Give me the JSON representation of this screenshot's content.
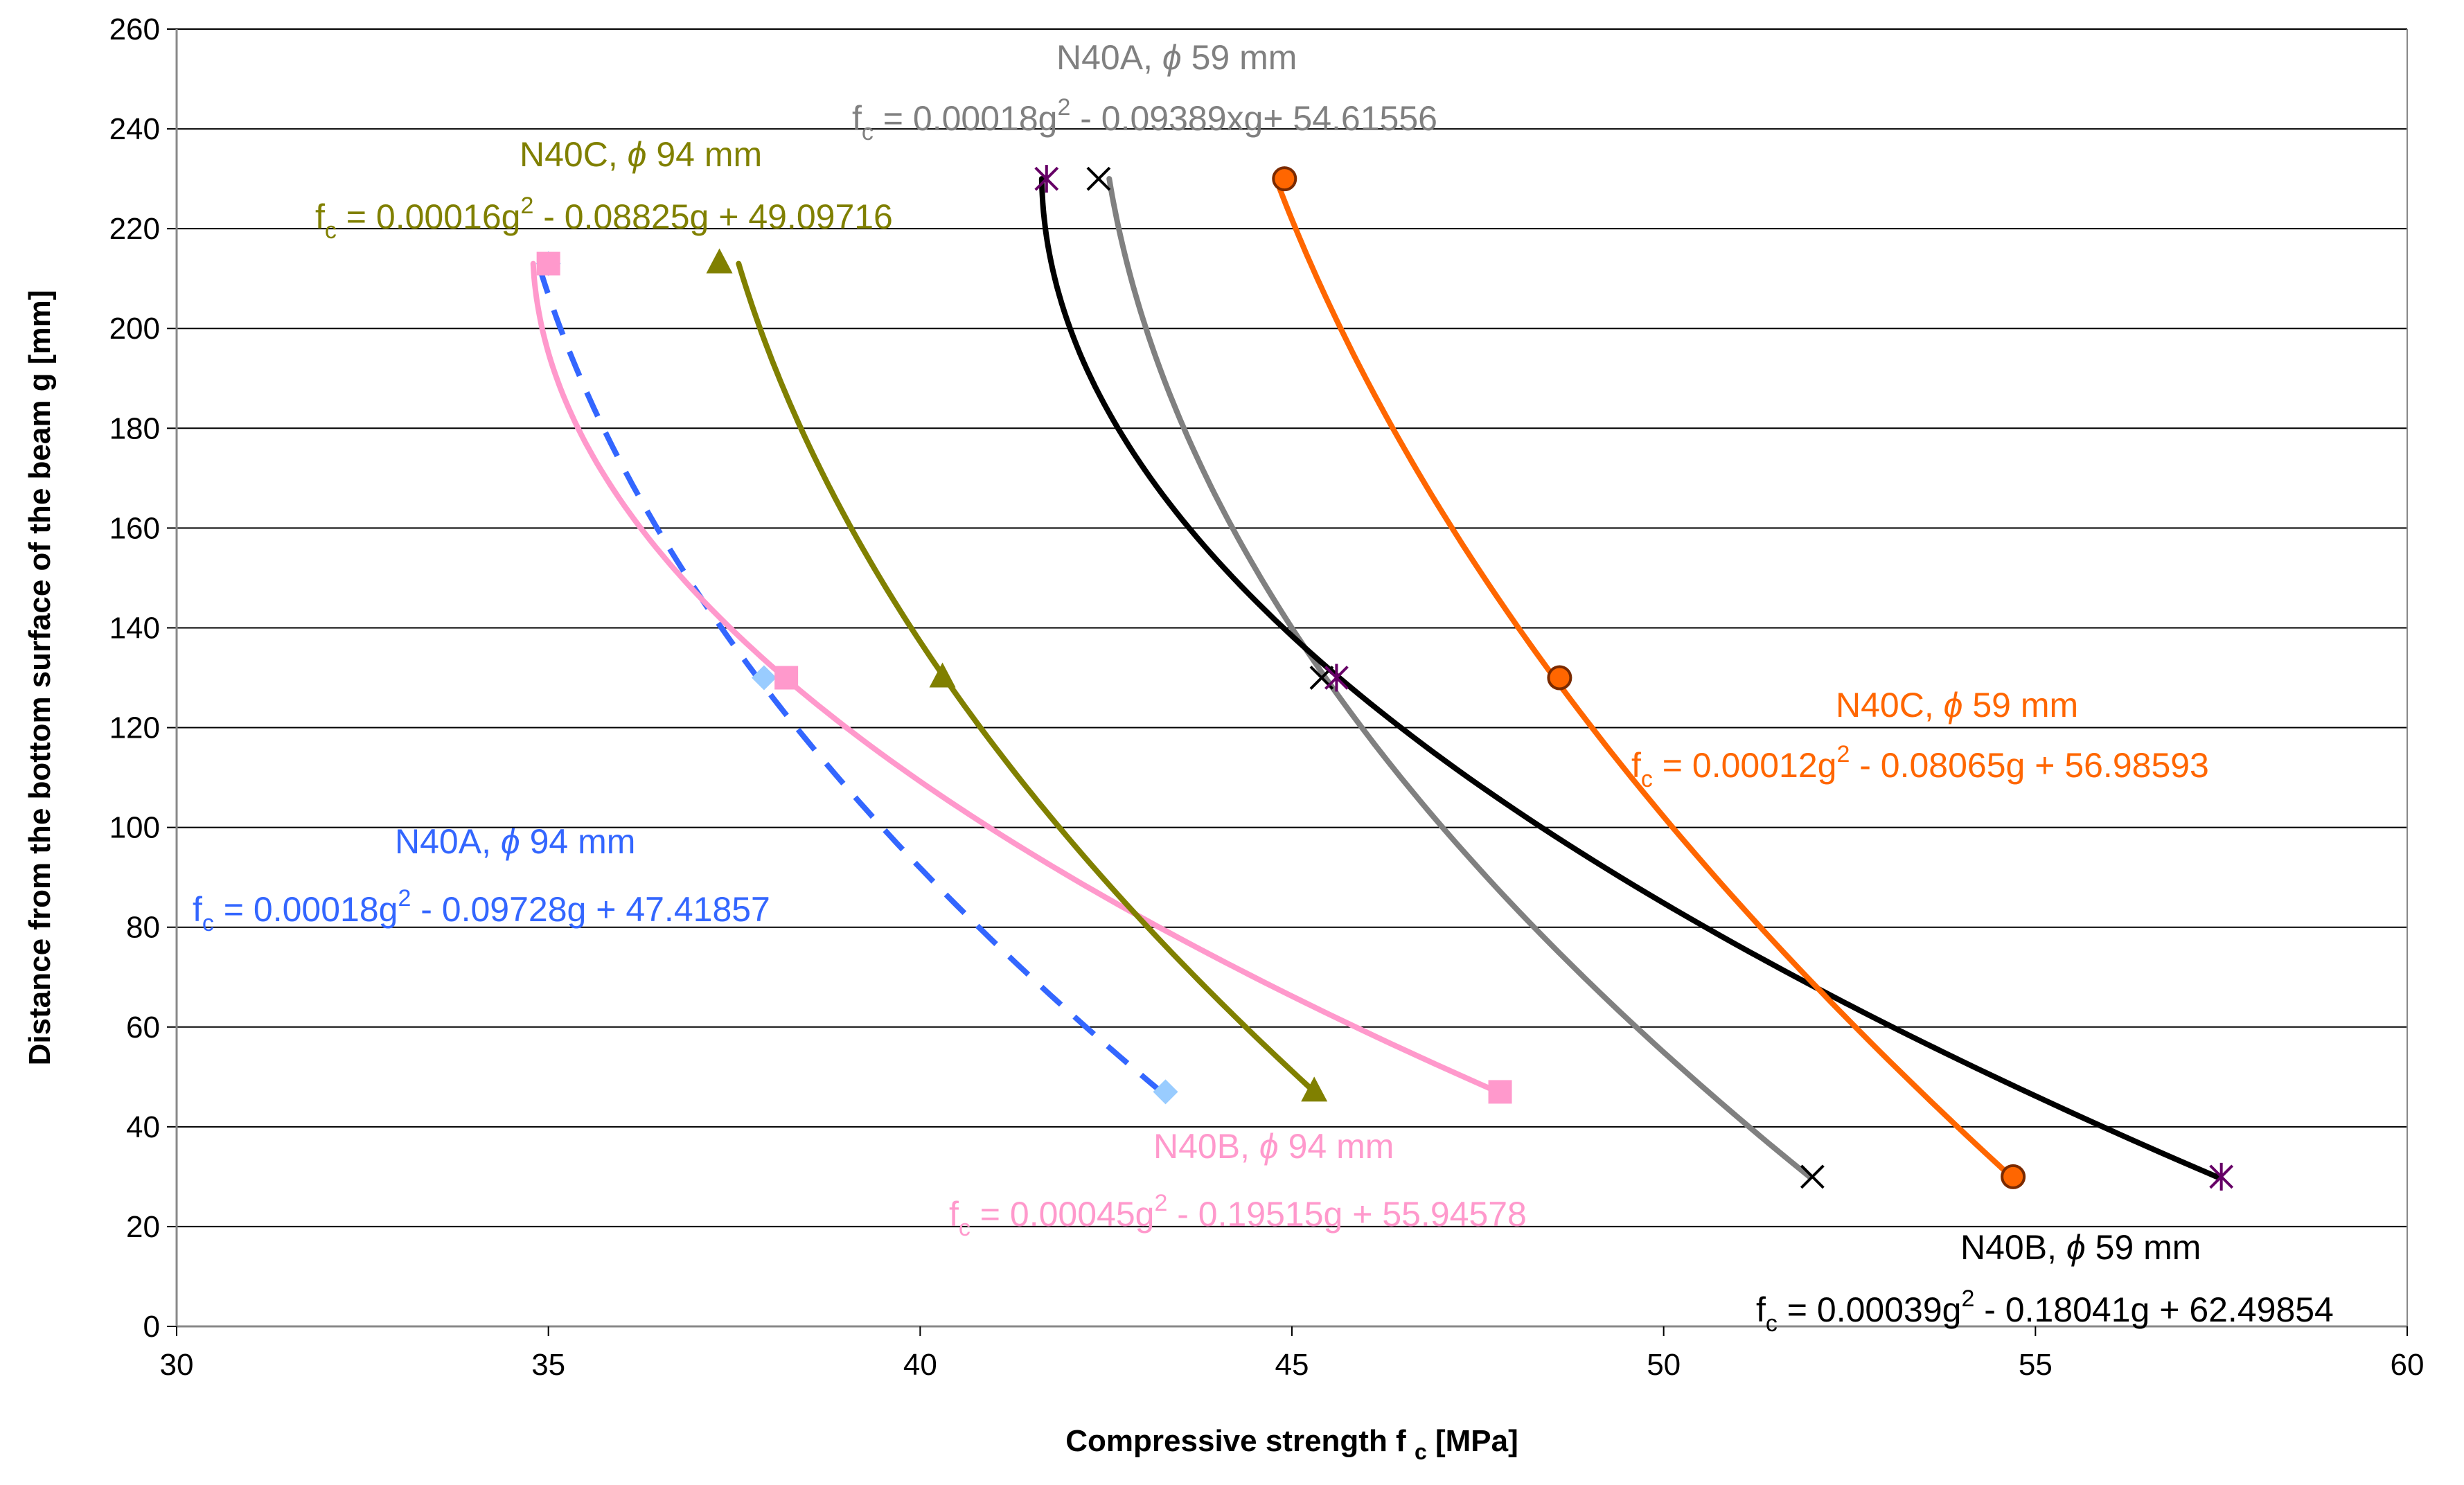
{
  "chart_data": {
    "type": "scatter",
    "xlabel": "Compressive strength f",
    "xlabel_sub": "c",
    "xlabel_unit": "[MPa]",
    "ylabel": "Distance from the bottom surface of the beam g [mm]",
    "xlim": [
      30,
      60
    ],
    "ylim": [
      0,
      260
    ],
    "xticks": [
      "30",
      "35",
      "40",
      "45",
      "50",
      "55",
      "60"
    ],
    "yticks": [
      "0",
      "20",
      "40",
      "60",
      "80",
      "100",
      "120",
      "140",
      "160",
      "180",
      "200",
      "220",
      "240",
      "260"
    ],
    "grid": "horizontal",
    "legend": "none",
    "series": [
      {
        "name": "N40A, ϕ 94 mm",
        "color": "#3366ff",
        "marker": "diamond",
        "marker_color": "#99ccff",
        "line_style": "dashed",
        "points": [
          {
            "x": 35.0,
            "y": 213
          },
          {
            "x": 37.9,
            "y": 130
          },
          {
            "x": 43.3,
            "y": 47
          }
        ],
        "fit": {
          "a": 0.00018,
          "b": -0.09728,
          "c": 47.41857
        },
        "label": "N40A, ϕ 94 mm",
        "equation": "f_c = 0.00018g^2 - 0.09728g + 47.41857"
      },
      {
        "name": "N40B, ϕ 94 mm",
        "color": "#ff99cc",
        "marker": "square",
        "marker_color": "#ff99cc",
        "line_style": "solid",
        "points": [
          {
            "x": 35.0,
            "y": 213
          },
          {
            "x": 38.2,
            "y": 130
          },
          {
            "x": 47.8,
            "y": 47
          }
        ],
        "fit": {
          "a": 0.00045,
          "b": -0.19515,
          "c": 55.94578
        },
        "label": "N40B, ϕ 94 mm",
        "equation": "f_c = 0.00045g^2 - 0.19515g + 55.94578"
      },
      {
        "name": "N40C, ϕ 94 mm",
        "color": "#808000",
        "marker": "triangle",
        "marker_color": "#808000",
        "line_style": "solid",
        "points": [
          {
            "x": 37.3,
            "y": 213
          },
          {
            "x": 40.3,
            "y": 130
          },
          {
            "x": 45.3,
            "y": 47
          }
        ],
        "fit": {
          "a": 0.00016,
          "b": -0.08825,
          "c": 49.09716
        },
        "label": "N40C, ϕ 94 mm",
        "equation": "f_c = 0.00016g^2 - 0.08825g + 49.09716"
      },
      {
        "name": "N40A, ϕ 59 mm",
        "color": "#808080",
        "marker": "x",
        "marker_color": "#000000",
        "line_style": "solid",
        "points": [
          {
            "x": 42.4,
            "y": 230
          },
          {
            "x": 45.4,
            "y": 130
          },
          {
            "x": 52.0,
            "y": 30
          }
        ],
        "fit": {
          "a": 0.00018,
          "b": -0.09389,
          "c": 54.61556
        },
        "label": "N40A, ϕ 59 mm",
        "equation": "f_c = 0.00018g^2 - 0.09389xg+ 54.61556"
      },
      {
        "name": "N40B, ϕ 59 mm",
        "color": "#000000",
        "marker": "star",
        "marker_color": "#660066",
        "line_style": "solid",
        "points": [
          {
            "x": 41.7,
            "y": 230
          },
          {
            "x": 45.6,
            "y": 130
          },
          {
            "x": 57.5,
            "y": 30
          }
        ],
        "fit": {
          "a": 0.00039,
          "b": -0.18041,
          "c": 62.49854
        },
        "label": "N40B, ϕ 59 mm",
        "equation": "f_c = 0.00039g^2 - 0.18041g + 62.49854"
      },
      {
        "name": "N40C, ϕ 59 mm",
        "color": "#ff6600",
        "marker": "circle",
        "marker_color": "#ff6600",
        "line_style": "solid",
        "points": [
          {
            "x": 44.9,
            "y": 230
          },
          {
            "x": 48.6,
            "y": 130
          },
          {
            "x": 54.7,
            "y": 30
          }
        ],
        "fit": {
          "a": 0.00012,
          "b": -0.08065,
          "c": 56.98593
        },
        "label": "N40C, ϕ 59 mm",
        "equation": "f_c = 0.00012g^2 - 0.08065g + 56.98593"
      }
    ]
  }
}
